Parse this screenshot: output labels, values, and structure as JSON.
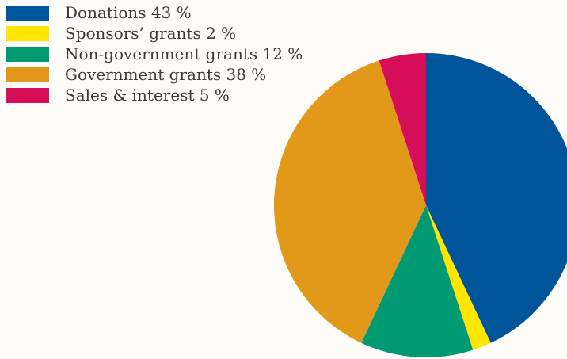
{
  "chart_data": {
    "type": "pie",
    "slices": [
      {
        "label": "Donations",
        "value": 43,
        "display": "Donations 43 %",
        "color": "#00549a"
      },
      {
        "label": "Sponsors' grants",
        "value": 2,
        "display": "Sponsors’ grants 2 %",
        "color": "#ffe500"
      },
      {
        "label": "Non-government grants",
        "value": 12,
        "display": "Non-government grants 12 %",
        "color": "#009a72"
      },
      {
        "label": "Government grants",
        "value": 38,
        "display": "Government grants 38 %",
        "color": "#e2991a"
      },
      {
        "label": "Sales & interest",
        "value": 5,
        "display": "Sales & interest 5 %",
        "color": "#d60e5a"
      }
    ],
    "start_angle": "top (12 o'clock)",
    "direction": "clockwise",
    "legend_position": "top-left",
    "title": ""
  }
}
